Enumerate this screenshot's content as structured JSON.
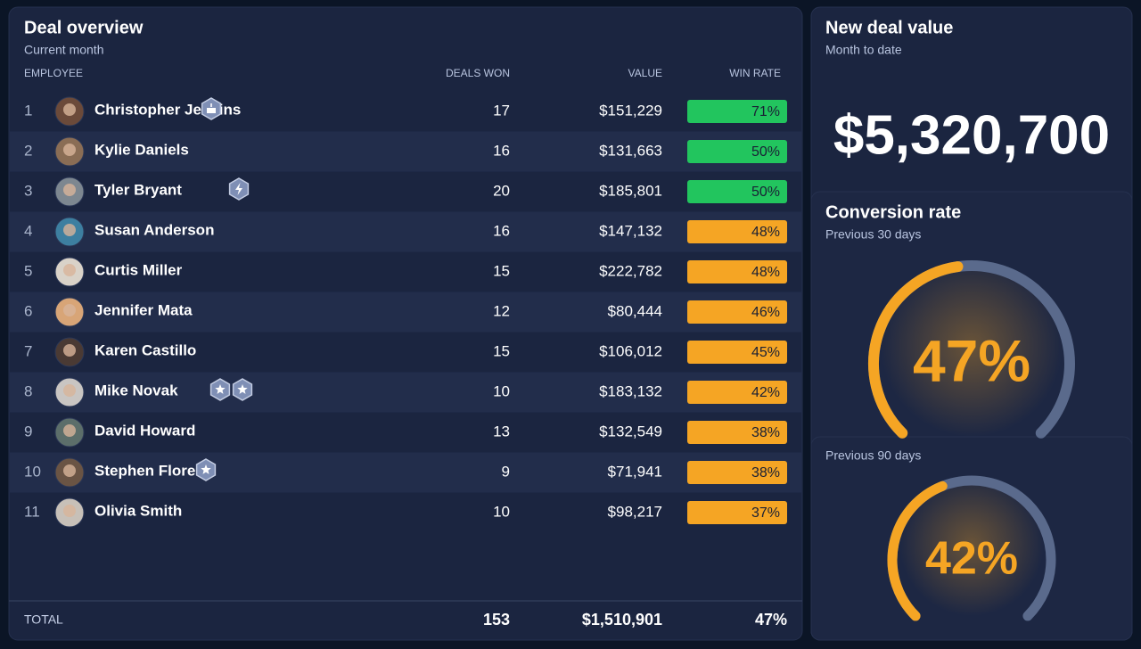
{
  "deal_overview": {
    "title": "Deal overview",
    "subtitle": "Current month",
    "columns": [
      "EMPLOYEE",
      "DEALS WON",
      "VALUE",
      "WIN RATE"
    ],
    "rows": [
      [
        "1",
        "Christopher Jenkins",
        "17",
        "$151,229",
        "71%"
      ],
      [
        "2",
        "Kylie Daniels",
        "16",
        "$131,663",
        "50%"
      ],
      [
        "3",
        "Tyler Bryant",
        "20",
        "$185,801",
        "50%"
      ],
      [
        "4",
        "Susan Anderson",
        "16",
        "$147,132",
        "48%"
      ],
      [
        "5",
        "Curtis Miller",
        "15",
        "$222,782",
        "48%"
      ],
      [
        "6",
        "Jennifer Mata",
        "12",
        "$80,444",
        "46%"
      ],
      [
        "7",
        "Karen Castillo",
        "15",
        "$106,012",
        "45%"
      ],
      [
        "8",
        "Mike Novak",
        "10",
        "$183,132",
        "42%"
      ],
      [
        "9",
        "David Howard",
        "13",
        "$132,549",
        "38%"
      ],
      [
        "10",
        "Stephen Flores",
        "9",
        "$71,941",
        "38%"
      ],
      [
        "11",
        "Olivia Smith",
        "10",
        "$98,217",
        "37%"
      ]
    ],
    "total": [
      "TOTAL",
      "153",
      "$1,510,901",
      "47%"
    ]
  },
  "new_deal_value": {
    "title": "New deal value",
    "subtitle": "Month to date",
    "value": "$5,320,700"
  },
  "conversion_rate": {
    "title": "Conversion rate",
    "gauges": [
      {
        "subtitle": "Previous 30 days",
        "value": 47,
        "label": "47%",
        "range": [
          0,
          100
        ]
      },
      {
        "subtitle": "Previous 90 days",
        "value": 42,
        "label": "42%",
        "range": [
          0,
          100
        ]
      }
    ]
  }
}
